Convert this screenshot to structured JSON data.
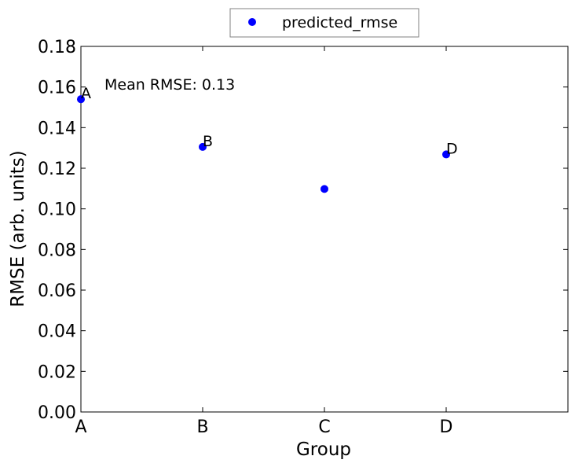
{
  "chart_data": {
    "type": "scatter",
    "categories": [
      "A",
      "B",
      "C",
      "D"
    ],
    "x": [
      0,
      1,
      2,
      3
    ],
    "series": [
      {
        "name": "predicted_rmse",
        "values": [
          0.154,
          0.1305,
          0.1098,
          0.1268
        ],
        "color": "#0000ff",
        "point_labels": [
          "A",
          "B",
          "",
          "D"
        ]
      }
    ],
    "title": "",
    "xlabel": "Group",
    "ylabel": "RMSE (arb. units)",
    "xlim": [
      0,
      4
    ],
    "ylim": [
      0,
      0.18
    ],
    "y_ticks": [
      "0.00",
      "0.02",
      "0.04",
      "0.06",
      "0.08",
      "0.10",
      "0.12",
      "0.14",
      "0.16",
      "0.18"
    ],
    "annotation": "Mean RMSE: 0.13",
    "grid": false,
    "legend_position": "top-center"
  }
}
